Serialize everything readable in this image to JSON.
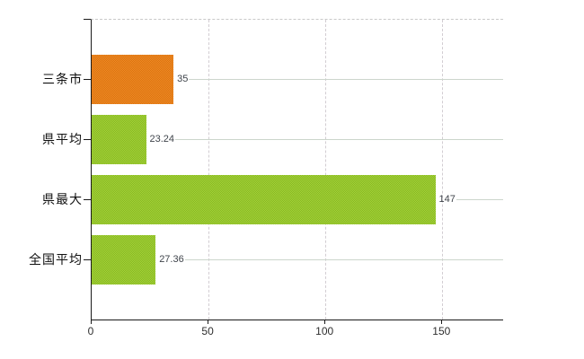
{
  "chart_data": {
    "type": "bar",
    "orientation": "horizontal",
    "title": "",
    "legend": "none",
    "categories": [
      "三条市",
      "県平均",
      "県最大",
      "全国平均"
    ],
    "values": [
      35,
      23.24,
      147,
      27.36
    ],
    "value_labels": [
      "35",
      "23.24",
      "147",
      "27.36"
    ],
    "x_ticks": [
      0,
      50,
      100,
      150
    ],
    "x_tick_labels": [
      "0",
      "50",
      "100",
      "150"
    ],
    "xlim": [
      0,
      176
    ],
    "grid": {
      "vertical": "dashed light gray at 50/100/150",
      "horizontal": "light line at each bar center extending to plot right edge",
      "plot_top_border": "dashed light gray"
    },
    "bar_styles": [
      {
        "color": "#e67e17",
        "light": "#f08c26",
        "dark": "#da710e"
      },
      {
        "color": "#95c42f",
        "light": "#a4d53a",
        "dark": "#87b521"
      },
      {
        "color": "#95c42f",
        "light": "#a4d53a",
        "dark": "#87b521"
      },
      {
        "color": "#95c42f",
        "light": "#a4d53a",
        "dark": "#87b521"
      }
    ]
  },
  "colors": {
    "background": "#ffffff",
    "axis": "#1a1a1a",
    "gridline_vertical": "#d2cdd2",
    "gridline_horizontal": "#ccd6cc",
    "value_label_text": "#3f444b",
    "category_label_text": "#111111",
    "x_tick_label_text": "#2e2e2e"
  }
}
